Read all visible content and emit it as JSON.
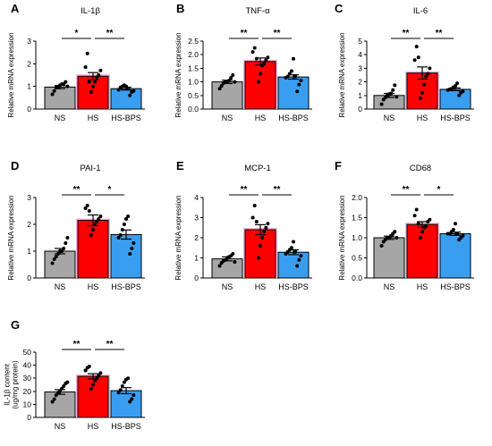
{
  "colors": {
    "NS": "#a6a6a6",
    "HS": "#ff0000",
    "HS-BPS": "#3a9ef0",
    "HS_glow": "#f5b3d9"
  },
  "chart_data": [
    {
      "type": "bar",
      "letter": "A",
      "title": "IL-1β",
      "ylabel": "Relative mRNA expression",
      "ylim": [
        0,
        3
      ],
      "yticks": [
        0,
        1,
        2,
        3
      ],
      "categories": [
        "NS",
        "HS",
        "HS-BPS"
      ],
      "values": [
        0.97,
        1.45,
        0.9
      ],
      "errors": [
        0.07,
        0.16,
        0.06
      ],
      "points": [
        [
          0.65,
          0.8,
          0.95,
          0.95,
          1.05,
          1.1,
          1.1,
          1.2,
          1.0
        ],
        [
          0.75,
          1.0,
          1.2,
          1.4,
          1.5,
          1.7,
          1.85,
          2.45,
          1.2
        ],
        [
          0.6,
          0.75,
          0.8,
          0.85,
          0.95,
          1.0,
          1.05,
          1.0,
          0.9
        ]
      ],
      "significance": [
        {
          "from": 0,
          "to": 1,
          "label": "*"
        },
        {
          "from": 1,
          "to": 2,
          "label": "**"
        }
      ]
    },
    {
      "type": "bar",
      "letter": "B",
      "title": "TNF-α",
      "ylabel": "Relative mRNA expression",
      "ylim": [
        0,
        2.5
      ],
      "yticks": [
        0.0,
        0.5,
        1.0,
        1.5,
        2.0,
        2.5
      ],
      "categories": [
        "NS",
        "HS",
        "HS-BPS"
      ],
      "values": [
        1.0,
        1.75,
        1.18
      ],
      "errors": [
        0.06,
        0.13,
        0.08
      ],
      "points": [
        [
          0.75,
          0.85,
          0.95,
          1.0,
          1.0,
          1.05,
          1.15,
          1.25,
          1.0
        ],
        [
          1.0,
          1.3,
          1.6,
          1.7,
          1.8,
          1.9,
          2.1,
          2.25,
          1.85
        ],
        [
          0.65,
          0.9,
          1.05,
          1.15,
          1.2,
          1.3,
          1.4,
          1.85,
          1.2
        ]
      ],
      "significance": [
        {
          "from": 0,
          "to": 1,
          "label": "**"
        },
        {
          "from": 1,
          "to": 2,
          "label": "**"
        }
      ]
    },
    {
      "type": "bar",
      "letter": "C",
      "title": "IL-6",
      "ylabel": "Relative mRNA expression",
      "ylim": [
        0,
        5
      ],
      "yticks": [
        0,
        1,
        2,
        3,
        4,
        5
      ],
      "categories": [
        "NS",
        "HS",
        "HS-BPS"
      ],
      "values": [
        1.0,
        2.65,
        1.45
      ],
      "errors": [
        0.15,
        0.45,
        0.1
      ],
      "points": [
        [
          0.35,
          0.7,
          0.85,
          1.0,
          1.1,
          1.15,
          1.4,
          1.75,
          0.9
        ],
        [
          0.8,
          1.2,
          1.8,
          2.4,
          2.6,
          3.0,
          3.6,
          4.6,
          3.8
        ],
        [
          1.0,
          1.2,
          1.3,
          1.4,
          1.45,
          1.5,
          1.6,
          1.7,
          1.9
        ]
      ],
      "significance": [
        {
          "from": 0,
          "to": 1,
          "label": "**"
        },
        {
          "from": 1,
          "to": 2,
          "label": "**"
        }
      ]
    },
    {
      "type": "bar",
      "letter": "D",
      "title": "PAI-1",
      "ylabel": "Relative mRNA expression",
      "ylim": [
        0,
        3
      ],
      "yticks": [
        0,
        1,
        2,
        3
      ],
      "categories": [
        "NS",
        "HS",
        "HS-BPS"
      ],
      "values": [
        1.0,
        2.15,
        1.62
      ],
      "errors": [
        0.1,
        0.2,
        0.17
      ],
      "points": [
        [
          0.55,
          0.7,
          0.8,
          0.9,
          1.0,
          1.0,
          1.1,
          1.3,
          1.5
        ],
        [
          1.6,
          1.8,
          2.0,
          2.1,
          2.2,
          2.3,
          2.6,
          2.7,
          2.5
        ],
        [
          0.9,
          1.1,
          1.3,
          1.5,
          1.6,
          1.8,
          2.0,
          2.2,
          2.3
        ]
      ],
      "significance": [
        {
          "from": 0,
          "to": 1,
          "label": "**"
        },
        {
          "from": 1,
          "to": 2,
          "label": "*"
        }
      ]
    },
    {
      "type": "bar",
      "letter": "E",
      "title": "MCP-1",
      "ylabel": "Relative mRNA expression",
      "ylim": [
        0,
        4
      ],
      "yticks": [
        0,
        1,
        2,
        3,
        4
      ],
      "categories": [
        "NS",
        "HS",
        "HS-BPS"
      ],
      "values": [
        0.95,
        2.4,
        1.28
      ],
      "errors": [
        0.1,
        0.25,
        0.12
      ],
      "points": [
        [
          0.6,
          0.75,
          0.85,
          0.9,
          1.0,
          1.05,
          1.1,
          1.2,
          0.8
        ],
        [
          1.0,
          1.6,
          2.0,
          2.3,
          2.5,
          2.7,
          3.0,
          3.6,
          2.8
        ],
        [
          0.6,
          0.9,
          1.1,
          1.2,
          1.3,
          1.4,
          1.5,
          1.8,
          1.3
        ]
      ],
      "significance": [
        {
          "from": 0,
          "to": 1,
          "label": "**"
        },
        {
          "from": 1,
          "to": 2,
          "label": "**"
        }
      ]
    },
    {
      "type": "bar",
      "letter": "F",
      "title": "CD68",
      "ylabel": "Relative mRNA expression",
      "ylim": [
        0,
        2.0
      ],
      "yticks": [
        0.0,
        0.5,
        1.0,
        1.5,
        2.0
      ],
      "categories": [
        "NS",
        "HS",
        "HS-BPS"
      ],
      "values": [
        1.0,
        1.33,
        1.1
      ],
      "errors": [
        0.04,
        0.07,
        0.04
      ],
      "points": [
        [
          0.8,
          0.9,
          0.95,
          1.0,
          1.0,
          1.05,
          1.1,
          1.15,
          1.0
        ],
        [
          1.0,
          1.15,
          1.25,
          1.3,
          1.4,
          1.45,
          1.55,
          1.7,
          1.35
        ],
        [
          0.95,
          1.0,
          1.05,
          1.1,
          1.1,
          1.15,
          1.2,
          1.35,
          1.1
        ]
      ],
      "significance": [
        {
          "from": 0,
          "to": 1,
          "label": "**"
        },
        {
          "from": 1,
          "to": 2,
          "label": "*"
        }
      ]
    },
    {
      "type": "bar",
      "letter": "G",
      "title": "",
      "ylabel": "IL-1β content (ug/mg protein)",
      "ylim": [
        0,
        50
      ],
      "yticks": [
        0,
        10,
        20,
        30,
        40,
        50
      ],
      "categories": [
        "NS",
        "HS",
        "HS-BPS"
      ],
      "values": [
        19.5,
        31.5,
        20.5
      ],
      "errors": [
        1.8,
        2.0,
        2.3
      ],
      "points": [
        [
          12,
          14,
          17,
          19,
          20,
          22,
          24,
          26,
          27
        ],
        [
          22,
          25,
          28,
          30,
          32,
          34,
          36,
          38,
          39
        ],
        [
          12,
          14,
          17,
          19,
          21,
          24,
          27,
          29,
          30
        ]
      ],
      "significance": [
        {
          "from": 0,
          "to": 1,
          "label": "**"
        },
        {
          "from": 1,
          "to": 2,
          "label": "**"
        }
      ]
    }
  ]
}
